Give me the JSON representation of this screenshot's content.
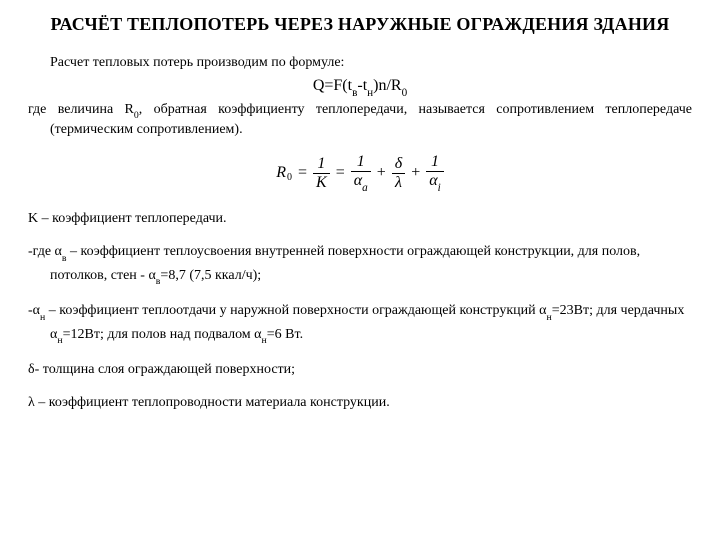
{
  "title": "РАСЧЁТ ТЕПЛОПОТЕРЬ ЧЕРЕЗ НАРУЖНЫЕ ОГРАЖДЕНИЯ ЗДАНИЯ",
  "intro": "Расчет тепловых потерь производим по формуле:",
  "formula_q_prefix": "Q=F(t",
  "formula_q_s1": "в",
  "formula_q_mid": "-t",
  "formula_q_s2": "н",
  "formula_q_suffix1": ")n/R",
  "formula_q_s3": "0",
  "where_r0_a": "где величина R",
  "where_r0_sub": "0",
  "where_r0_b": ", обратная коэффициенту теплопередачи, называется сопротивлением теплопередаче (термическим сопротивлением).",
  "eq": {
    "R": "R",
    "R_sub": "0",
    "one": "1",
    "K": "K",
    "alpha": "α",
    "a_sub": "a",
    "delta": "δ",
    "lambda": "λ",
    "i_sub": "i"
  },
  "k_line": "K – коэффициент теплопередачи.",
  "alpha_v_a": "-где α",
  "alpha_v_sub1": "в",
  "alpha_v_b": " – коэффициент теплоусвоения внутренней поверхности ограждающей конструкции, для полов, потолков, стен - α",
  "alpha_v_sub2": "в",
  "alpha_v_c": "=8,7 (7,5 ккал/ч);",
  "alpha_n_a": "-α",
  "alpha_n_s1": "н",
  "alpha_n_b": " – коэффициент теплоотдачи у наружной поверхности ограждающей конструкций α",
  "alpha_n_s2": "н",
  "alpha_n_c": "=23Вт; для чердачных α",
  "alpha_n_s3": "н",
  "alpha_n_d": "=12Вт; для полов над подвалом α",
  "alpha_n_s4": "н",
  "alpha_n_e": "=6 Вт.",
  "delta_line": "δ- толщина слоя ограждающей поверхности;",
  "lambda_line": "λ – коэффициент теплопроводности материала конструкции."
}
